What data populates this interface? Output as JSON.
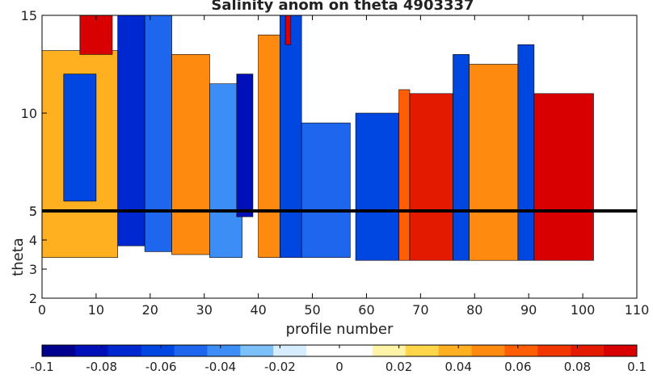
{
  "chart_data": {
    "type": "heatmap",
    "title": "Salinity anom on theta     4903337",
    "xlabel": "profile number",
    "ylabel": "theta",
    "xlim": [
      0,
      110
    ],
    "upper_panel": {
      "ylim": [
        5,
        15
      ],
      "yticks": [
        "5",
        "10",
        "15"
      ]
    },
    "lower_panel": {
      "ylim": [
        2,
        5
      ],
      "yticks": [
        "2",
        "3",
        "4",
        "5"
      ]
    },
    "xticks": [
      "0",
      "10",
      "20",
      "30",
      "40",
      "50",
      "60",
      "70",
      "80",
      "90",
      "100",
      "110"
    ],
    "colorbar": {
      "range": [
        -0.1,
        0.1
      ],
      "ticks": [
        "-0.1",
        "-0.08",
        "-0.06",
        "-0.04",
        "-0.02",
        "0",
        "0.02",
        "0.04",
        "0.06",
        "0.08",
        "0.1"
      ],
      "colors": [
        "#00008f",
        "#0010b8",
        "#0028d0",
        "#0046e0",
        "#1e66ee",
        "#3c8ef6",
        "#7cc0fa",
        "#d6ecff",
        "#ffffff",
        "#ffffff",
        "#fff3a8",
        "#ffd54a",
        "#ffb020",
        "#ff8a10",
        "#ff5e06",
        "#f23602",
        "#e41a00",
        "#d80000"
      ]
    },
    "bands": [
      {
        "x": [
          0,
          14
        ],
        "theta": [
          3.4,
          13.2
        ],
        "anomaly": 0.04
      },
      {
        "x": [
          4,
          10
        ],
        "theta": [
          5.5,
          12.0
        ],
        "anomaly": -0.06
      },
      {
        "x": [
          7,
          13
        ],
        "theta": [
          13.0,
          15.0
        ],
        "anomaly": 0.1
      },
      {
        "x": [
          14,
          19
        ],
        "theta": [
          3.8,
          15.0
        ],
        "anomaly": -0.07
      },
      {
        "x": [
          19,
          24
        ],
        "theta": [
          3.6,
          15.0
        ],
        "anomaly": -0.05
      },
      {
        "x": [
          24,
          31
        ],
        "theta": [
          3.5,
          13.0
        ],
        "anomaly": 0.05
      },
      {
        "x": [
          31,
          37
        ],
        "theta": [
          3.4,
          11.5
        ],
        "anomaly": -0.04
      },
      {
        "x": [
          36,
          39
        ],
        "theta": [
          4.8,
          12.0
        ],
        "anomaly": -0.08
      },
      {
        "x": [
          40,
          44
        ],
        "theta": [
          3.4,
          14.0
        ],
        "anomaly": 0.05
      },
      {
        "x": [
          44,
          48
        ],
        "theta": [
          3.4,
          15.0
        ],
        "anomaly": -0.06
      },
      {
        "x": [
          45,
          46
        ],
        "theta": [
          13.5,
          15.0
        ],
        "anomaly": 0.1
      },
      {
        "x": [
          48,
          57
        ],
        "theta": [
          3.4,
          9.5
        ],
        "anomaly": -0.05
      },
      {
        "x": [
          58,
          66
        ],
        "theta": [
          3.3,
          10.0
        ],
        "anomaly": -0.06
      },
      {
        "x": [
          66,
          68
        ],
        "theta": [
          3.3,
          11.2
        ],
        "anomaly": 0.06
      },
      {
        "x": [
          68,
          76
        ],
        "theta": [
          3.3,
          11.0
        ],
        "anomaly": 0.08
      },
      {
        "x": [
          76,
          79
        ],
        "theta": [
          3.3,
          13.0
        ],
        "anomaly": -0.06
      },
      {
        "x": [
          79,
          88
        ],
        "theta": [
          3.3,
          12.5
        ],
        "anomaly": 0.05
      },
      {
        "x": [
          88,
          91
        ],
        "theta": [
          3.3,
          13.5
        ],
        "anomaly": -0.06
      },
      {
        "x": [
          91,
          102
        ],
        "theta": [
          3.3,
          11.0
        ],
        "anomaly": 0.09
      }
    ]
  }
}
